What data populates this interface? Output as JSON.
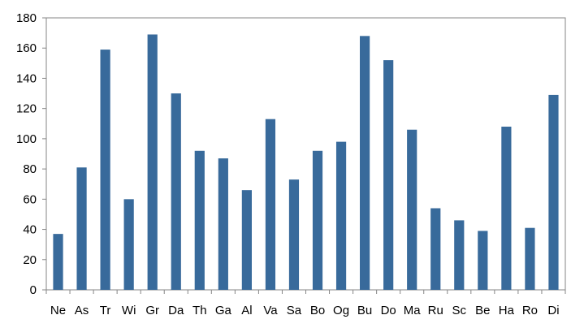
{
  "chart_data": {
    "type": "bar",
    "title": "",
    "xlabel": "",
    "ylabel": "",
    "categories": [
      "Ne",
      "As",
      "Tr",
      "Wi",
      "Gr",
      "Da",
      "Th",
      "Ga",
      "Al",
      "Va",
      "Sa",
      "Bo",
      "Og",
      "Bu",
      "Do",
      "Ma",
      "Ru",
      "Sc",
      "Be",
      "Ha",
      "Ro",
      "Di"
    ],
    "values": [
      37,
      81,
      159,
      60,
      169,
      130,
      92,
      87,
      66,
      113,
      73,
      92,
      98,
      168,
      152,
      106,
      54,
      46,
      39,
      108,
      41,
      129
    ],
    "ylim": [
      0,
      180
    ],
    "yticks": [
      0,
      20,
      40,
      60,
      80,
      100,
      120,
      140,
      160,
      180
    ],
    "grid": false,
    "legend": "none",
    "bar_color": "#386a9b",
    "axis_color": "#868686"
  }
}
